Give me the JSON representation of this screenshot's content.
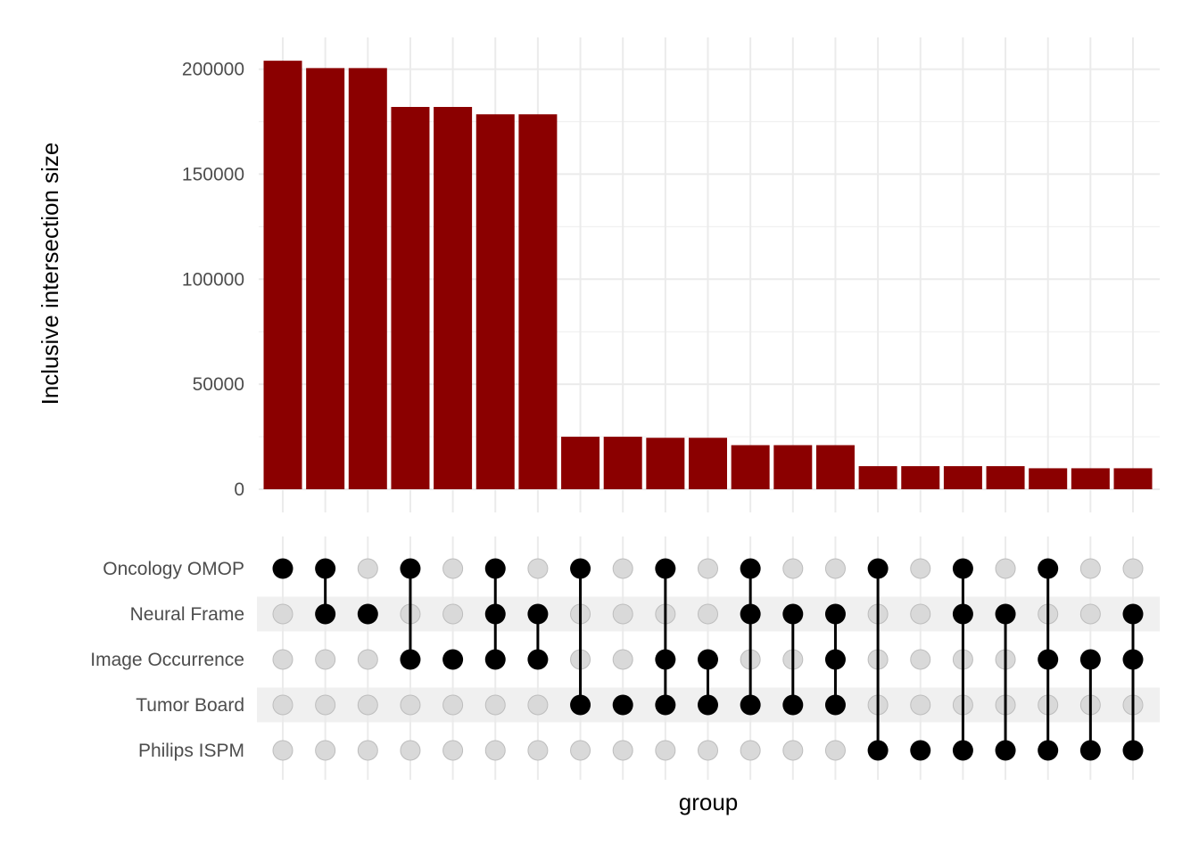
{
  "chart_data": {
    "type": "bar",
    "subtype": "upset",
    "ylabel": "Inclusive intersection size",
    "xlabel": "group",
    "ylim": [
      0,
      210000
    ],
    "yticks": [
      0,
      50000,
      100000,
      150000,
      200000
    ],
    "yticks_labels": [
      "0",
      "50000",
      "100000",
      "150000",
      "200000"
    ],
    "grid": true,
    "bar_color": "#8B0000",
    "dot_active_color": "#000000",
    "dot_inactive_color": "#d9d9d9",
    "sets": [
      "Oncology OMOP",
      "Neural Frame",
      "Image Occurrence",
      "Tumor Board",
      "Philips ISPM"
    ],
    "values": [
      204000,
      200500,
      200500,
      182000,
      182000,
      178500,
      178500,
      25000,
      25000,
      24500,
      24500,
      21000,
      21000,
      21000,
      11000,
      11000,
      11000,
      11000,
      10000,
      10000,
      10000
    ],
    "memberships": [
      [
        "Oncology OMOP"
      ],
      [
        "Oncology OMOP",
        "Neural Frame"
      ],
      [
        "Neural Frame"
      ],
      [
        "Oncology OMOP",
        "Image Occurrence"
      ],
      [
        "Image Occurrence"
      ],
      [
        "Oncology OMOP",
        "Neural Frame",
        "Image Occurrence"
      ],
      [
        "Neural Frame",
        "Image Occurrence"
      ],
      [
        "Oncology OMOP",
        "Tumor Board"
      ],
      [
        "Tumor Board"
      ],
      [
        "Oncology OMOP",
        "Image Occurrence",
        "Tumor Board"
      ],
      [
        "Image Occurrence",
        "Tumor Board"
      ],
      [
        "Oncology OMOP",
        "Neural Frame",
        "Tumor Board"
      ],
      [
        "Neural Frame",
        "Tumor Board"
      ],
      [
        "Neural Frame",
        "Image Occurrence",
        "Tumor Board"
      ],
      [
        "Oncology OMOP",
        "Philips ISPM"
      ],
      [
        "Philips ISPM"
      ],
      [
        "Oncology OMOP",
        "Neural Frame",
        "Philips ISPM"
      ],
      [
        "Neural Frame",
        "Philips ISPM"
      ],
      [
        "Oncology OMOP",
        "Image Occurrence",
        "Philips ISPM"
      ],
      [
        "Image Occurrence",
        "Philips ISPM"
      ],
      [
        "Neural Frame",
        "Image Occurrence",
        "Philips ISPM"
      ]
    ]
  }
}
